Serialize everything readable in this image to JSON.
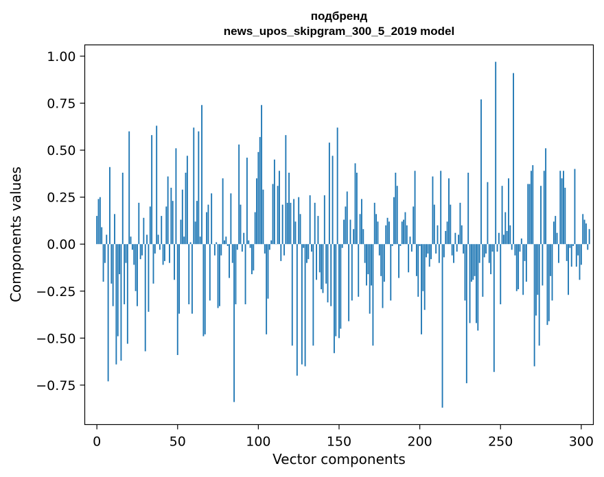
{
  "chart_data": {
    "type": "bar",
    "title": "подбренд",
    "subtitle": "news_upos_skipgram_300_5_2019 model",
    "xlabel": "Vector components",
    "ylabel": "Components values",
    "xlim": [
      -7.5,
      307.5
    ],
    "ylim": [
      -0.96,
      1.06
    ],
    "xticks": [
      0,
      50,
      100,
      150,
      200,
      250,
      300
    ],
    "xtick_labels": [
      "0",
      "50",
      "100",
      "150",
      "200",
      "250",
      "300"
    ],
    "yticks": [
      -0.75,
      -0.5,
      -0.25,
      0.0,
      0.25,
      0.5,
      0.75,
      1.0
    ],
    "ytick_labels": [
      "−0.75",
      "−0.50",
      "−0.25",
      "0.00",
      "0.25",
      "0.50",
      "0.75",
      "1.00"
    ],
    "bar_color": "#1f77b4",
    "grid": false,
    "values": [
      0.15,
      0.24,
      0.25,
      0.09,
      -0.2,
      -0.1,
      0.05,
      -0.73,
      0.41,
      -0.21,
      -0.33,
      0.16,
      -0.64,
      -0.49,
      -0.16,
      -0.62,
      0.38,
      -0.32,
      -0.1,
      -0.53,
      0.6,
      0.04,
      -0.03,
      -0.11,
      -0.25,
      -0.33,
      0.22,
      -0.08,
      -0.06,
      0.14,
      -0.57,
      0.05,
      -0.36,
      0.2,
      0.58,
      -0.21,
      -0.05,
      0.63,
      0.05,
      -0.03,
      0.15,
      -0.11,
      -0.09,
      0.2,
      0.36,
      -0.1,
      0.3,
      0.23,
      -0.19,
      0.51,
      -0.59,
      -0.37,
      0.13,
      0.29,
      0.04,
      0.38,
      0.47,
      -0.32,
      0.01,
      -0.37,
      0.62,
      0.12,
      0.23,
      0.6,
      0.04,
      0.74,
      -0.49,
      -0.48,
      0.17,
      0.21,
      -0.3,
      0.27,
      0.0,
      -0.06,
      0.01,
      -0.34,
      -0.33,
      -0.06,
      0.35,
      0.02,
      0.04,
      -0.01,
      -0.18,
      0.27,
      -0.1,
      -0.84,
      -0.32,
      -0.03,
      0.53,
      0.21,
      -0.04,
      0.06,
      -0.32,
      0.46,
      0.02,
      -0.02,
      -0.16,
      -0.14,
      0.17,
      0.35,
      0.49,
      0.57,
      0.74,
      0.29,
      -0.05,
      -0.48,
      -0.29,
      -0.03,
      0.02,
      0.32,
      0.45,
      0.0,
      0.31,
      0.39,
      -0.09,
      0.21,
      -0.06,
      0.58,
      0.22,
      0.38,
      0.22,
      -0.54,
      0.24,
      0.12,
      -0.7,
      0.25,
      0.16,
      -0.64,
      -0.02,
      -0.65,
      -0.1,
      -0.08,
      0.26,
      -0.04,
      -0.54,
      0.22,
      -0.19,
      0.15,
      -0.15,
      -0.24,
      -0.26,
      0.26,
      -0.21,
      -0.31,
      0.54,
      -0.33,
      0.47,
      -0.58,
      -0.49,
      0.62,
      -0.5,
      -0.45,
      -0.02,
      0.13,
      0.2,
      0.28,
      -0.41,
      0.13,
      -0.3,
      0.08,
      0.43,
      0.38,
      -0.28,
      0.16,
      0.24,
      0.08,
      -0.1,
      -0.22,
      -0.16,
      -0.37,
      -0.22,
      -0.54,
      0.22,
      0.16,
      0.12,
      -0.06,
      -0.17,
      -0.34,
      -0.2,
      0.1,
      0.14,
      0.12,
      -0.3,
      -0.01,
      0.25,
      0.38,
      0.31,
      -0.18,
      -0.01,
      0.12,
      0.13,
      0.17,
      0.1,
      -0.15,
      0.04,
      -0.04,
      0.2,
      0.39,
      -0.17,
      -0.28,
      -0.01,
      -0.48,
      -0.25,
      -0.35,
      -0.07,
      -0.05,
      -0.12,
      -0.08,
      0.36,
      0.21,
      -0.05,
      0.1,
      -0.1,
      0.39,
      -0.87,
      -0.07,
      0.07,
      0.12,
      0.35,
      0.21,
      -0.06,
      -0.1,
      0.06,
      -0.04,
      0.05,
      0.22,
      0.1,
      -0.05,
      -0.3,
      -0.74,
      0.38,
      -0.42,
      -0.2,
      -0.19,
      -0.17,
      -0.42,
      -0.46,
      -0.1,
      0.77,
      -0.28,
      -0.07,
      -0.05,
      0.33,
      -0.1,
      -0.16,
      -0.04,
      -0.68,
      0.97,
      -0.04,
      0.06,
      -0.32,
      0.31,
      0.05,
      0.17,
      0.07,
      0.35,
      0.1,
      -0.03,
      0.91,
      -0.06,
      -0.25,
      -0.24,
      -0.04,
      0.03,
      -0.27,
      -0.09,
      -0.2,
      0.32,
      0.32,
      0.39,
      0.42,
      -0.65,
      -0.38,
      -0.27,
      -0.54,
      0.31,
      -0.22,
      0.39,
      0.51,
      -0.43,
      -0.41,
      -0.17,
      -0.3,
      0.12,
      0.15,
      0.06,
      -0.1,
      0.39,
      0.35,
      0.39,
      0.3,
      -0.09,
      -0.27,
      -0.02,
      -0.12,
      -0.01,
      0.4,
      -0.12,
      -0.06,
      -0.19,
      -0.11,
      0.16,
      0.13,
      0.11,
      -0.03,
      0.08
    ]
  }
}
